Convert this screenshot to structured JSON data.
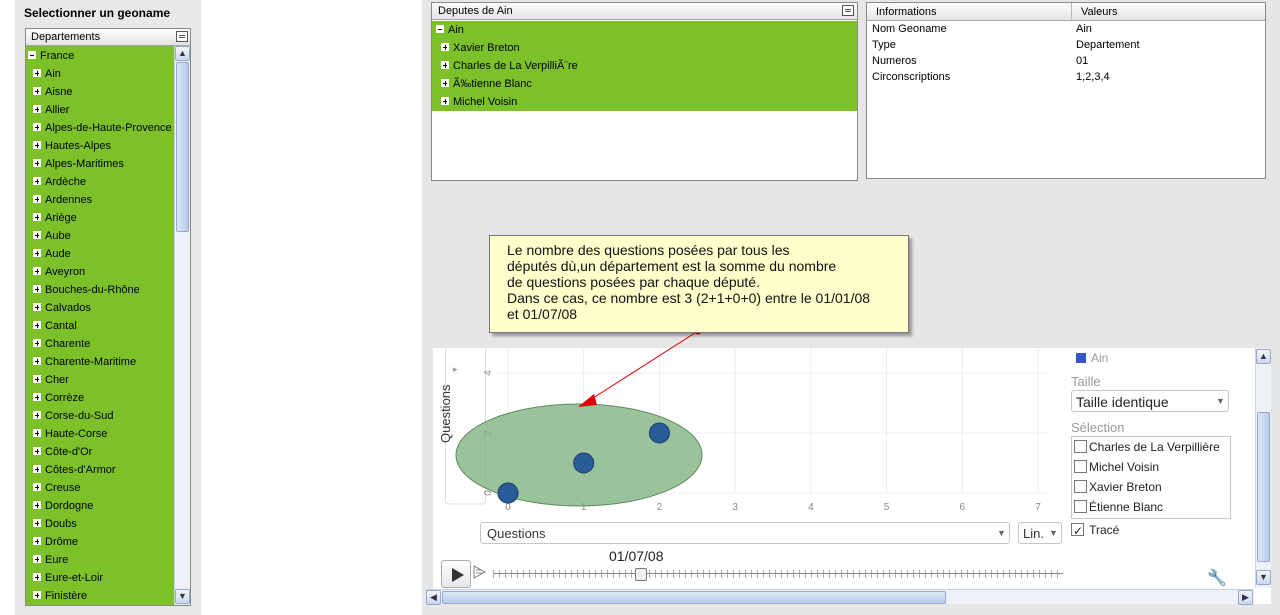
{
  "left": {
    "title": "Selectionner un geoname",
    "tree_header": "Departements",
    "root": "France",
    "items": [
      "Ain",
      "Aisne",
      "Allier",
      "Alpes-de-Haute-Provence",
      "Hautes-Alpes",
      "Alpes-Maritimes",
      "Ardèche",
      "Ardennes",
      "Ariège",
      "Aube",
      "Aude",
      "Aveyron",
      "Bouches-du-Rhône",
      "Calvados",
      "Cantal",
      "Charente",
      "Charente-Maritime",
      "Cher",
      "Corrèze",
      "Corse-du-Sud",
      "Haute-Corse",
      "Côte-d'Or",
      "Côtes-d'Armor",
      "Creuse",
      "Dordogne",
      "Doubs",
      "Drôme",
      "Eure",
      "Eure-et-Loir",
      "Finistère"
    ]
  },
  "deputes": {
    "header": "Deputes de Ain",
    "root": "Ain",
    "items": [
      "Xavier Breton",
      "Charles de La VerpilliÃ¨re",
      "Ã‰tienne Blanc",
      "Michel Voisin"
    ]
  },
  "info": {
    "col1": "Informations",
    "col2": "Valeurs",
    "rows": [
      {
        "k": "Nom Geoname",
        "v": "Ain"
      },
      {
        "k": "Type",
        "v": "Departement"
      },
      {
        "k": "Numeros",
        "v": "01"
      },
      {
        "k": "Circonscriptions",
        "v": "1,2,3,4"
      }
    ]
  },
  "tooltip": {
    "lines": [
      "Le nombre des questions posées par tous les",
      "députés dù,un département est la somme du nombre",
      "de questions posées par chaque député.",
      "Dans ce cas, ce nombre est 3 (2+1+0+0) entre le 01/01/08",
      "et 01/07/08"
    ]
  },
  "chart": {
    "y_label": "Questions",
    "x_select": "Questions",
    "scale_select": "Lin.",
    "date": "01/07/08",
    "legend_series": "Ain",
    "taille_label": "Taille",
    "taille_value": "Taille identique",
    "selection_label": "Sélection",
    "selection": [
      {
        "name": "Charles de La Verpillière",
        "checked": false
      },
      {
        "name": "Michel Voisin",
        "checked": false
      },
      {
        "name": "Xavier Breton",
        "checked": false
      },
      {
        "name": "Étienne Blanc",
        "checked": false
      }
    ],
    "trace_label": "Tracé",
    "trace_checked": true,
    "colors": {
      "series": "#3355cc",
      "bubble": "#2a5c9a",
      "highlight": "#7fb27f",
      "arrow": "#e00000"
    }
  },
  "chart_data": {
    "type": "scatter",
    "x_ticks": [
      "0",
      "1",
      "2",
      "3",
      "4",
      "5",
      "6",
      "7"
    ],
    "y_ticks": [
      "0",
      "2",
      "4"
    ],
    "xlim": [
      0,
      7
    ],
    "ylim": [
      0,
      4.5
    ],
    "points": [
      {
        "x": 0,
        "y": 0
      },
      {
        "x": 1,
        "y": 1
      },
      {
        "x": 2,
        "y": 2
      }
    ]
  }
}
